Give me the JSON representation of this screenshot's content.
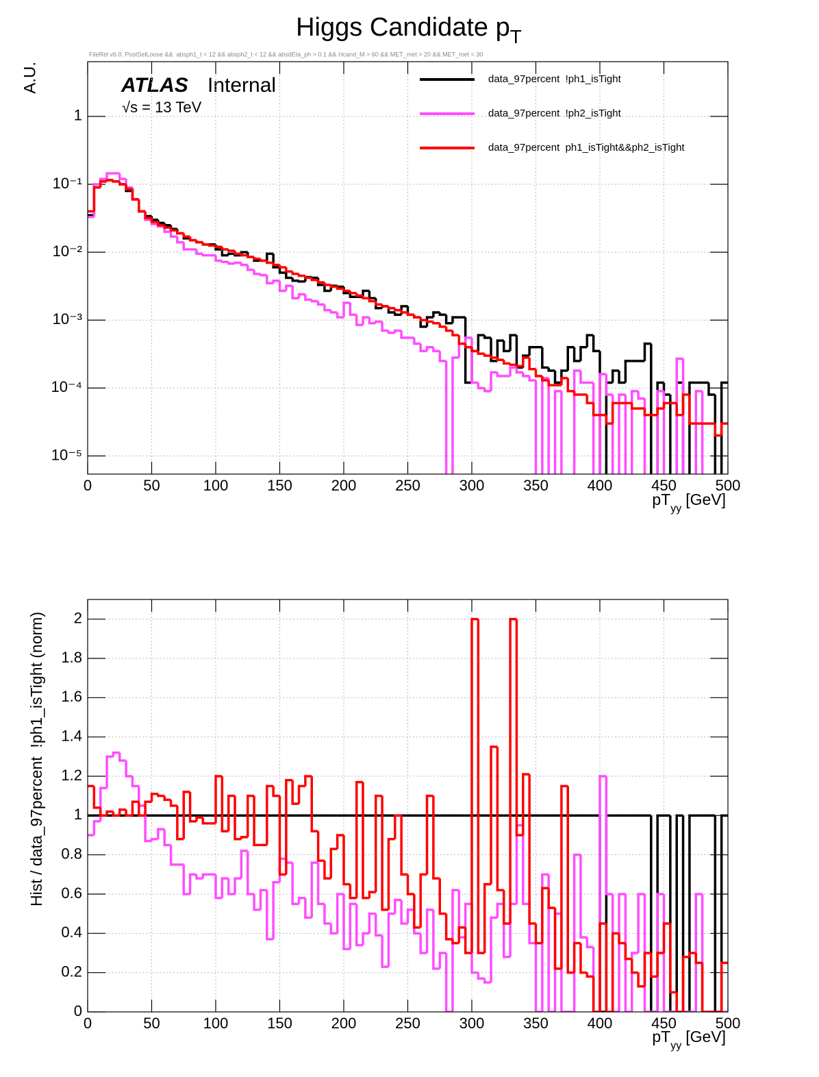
{
  "chart_data": [
    {
      "type": "histogram",
      "title": {
        "text": "Higgs Candidate p",
        "sub": "T"
      },
      "subtitle": "FileRel v6.0. PostSelLoose &&  absph1_t < 12 && absph2_t < 12 && absdEta_ph > 0.1 && Hcand_M > 60 && MET_met > 20 && MET_met < 30",
      "annotations": [
        "ATLAS",
        "Internal",
        "√s = 13 TeV"
      ],
      "ylabel": "A.U.",
      "xlabel": {
        "text": "pT",
        "sub": "yy",
        "unit": "[GeV]"
      },
      "log_y": true,
      "grid": true,
      "legend": "top-right",
      "xlim": [
        0,
        500
      ],
      "xticks": [
        0,
        50,
        100,
        150,
        200,
        250,
        300,
        350,
        400,
        450,
        500
      ],
      "ylim": [
        5.4e-06,
        6.4
      ],
      "yticks": [
        {
          "value": 1e-05,
          "label": "10⁻⁵"
        },
        {
          "value": 0.0001,
          "label": "10⁻⁴"
        },
        {
          "value": 0.001,
          "label": "10⁻³"
        },
        {
          "value": 0.01,
          "label": "10⁻²"
        },
        {
          "value": 0.1,
          "label": "10⁻¹"
        },
        1
      ],
      "bins": [
        0,
        5,
        10,
        15,
        20,
        25,
        30,
        35,
        40,
        45,
        50,
        55,
        60,
        65,
        70,
        75,
        80,
        85,
        90,
        95,
        100,
        105,
        110,
        115,
        120,
        125,
        130,
        135,
        140,
        145,
        150,
        155,
        160,
        165,
        170,
        175,
        180,
        185,
        190,
        195,
        200,
        205,
        210,
        215,
        220,
        225,
        230,
        235,
        240,
        245,
        250,
        255,
        260,
        265,
        270,
        275,
        280,
        285,
        290,
        295,
        300,
        305,
        310,
        315,
        320,
        325,
        330,
        335,
        340,
        345,
        350,
        355,
        360,
        365,
        370,
        375,
        380,
        385,
        390,
        395,
        400,
        405,
        410,
        415,
        420,
        425,
        430,
        435,
        440,
        445,
        450,
        455,
        460,
        465,
        470,
        475,
        480,
        485,
        490,
        495,
        500
      ],
      "series": [
        {
          "name": "data_97percent  !ph1_isTight",
          "color": "#000000",
          "values": [
            0.035,
            0.09,
            0.11,
            0.115,
            0.11,
            0.1,
            0.08,
            0.06,
            0.04,
            0.034,
            0.03,
            0.027,
            0.025,
            0.022,
            0.019,
            0.016,
            0.015,
            0.014,
            0.013,
            0.013,
            0.011,
            0.009,
            0.0095,
            0.009,
            0.01,
            0.0085,
            0.0075,
            0.0075,
            0.0095,
            0.006,
            0.005,
            0.0042,
            0.0038,
            0.0037,
            0.0043,
            0.0042,
            0.0033,
            0.0027,
            0.0032,
            0.0031,
            0.0025,
            0.0022,
            0.0022,
            0.0027,
            0.0021,
            0.0015,
            0.0016,
            0.0013,
            0.0012,
            0.0016,
            0.0012,
            0.0011,
            0.0008,
            0.0011,
            0.0013,
            0.0012,
            0.0009,
            0.0011,
            0.0011,
            0.00012,
            0.00035,
            0.0006,
            0.00055,
            0.00025,
            0.0005,
            0.00035,
            0.0006,
            0.0002,
            0.0003,
            0.0004,
            0.0004,
            0.0002,
            0.00018,
            0.00012,
            0.00018,
            0.0004,
            0.00025,
            0.0004,
            0.0006,
            0.00035,
            0,
            0.00012,
            0.00018,
            0.00012,
            0.00025,
            0.00025,
            0.00025,
            0.00045,
            0,
            0.00012,
            8e-05,
            0,
            0.00012,
            0,
            0.00012,
            0.00012,
            0.00012,
            8e-05,
            0,
            0.00012
          ]
        },
        {
          "name": "data_97percent  !ph2_isTight",
          "color": "#ff4dff",
          "values": [
            0.033,
            0.1,
            0.12,
            0.145,
            0.145,
            0.12,
            0.09,
            0.06,
            0.04,
            0.03,
            0.026,
            0.024,
            0.02,
            0.017,
            0.014,
            0.011,
            0.011,
            0.0095,
            0.009,
            0.009,
            0.0075,
            0.0072,
            0.0068,
            0.007,
            0.0065,
            0.0055,
            0.0048,
            0.0046,
            0.0035,
            0.0038,
            0.0027,
            0.0032,
            0.0021,
            0.0024,
            0.002,
            0.0019,
            0.0017,
            0.0014,
            0.0013,
            0.0011,
            0.0018,
            0.0012,
            0.00085,
            0.0011,
            0.0009,
            0.00095,
            0.0007,
            0.00065,
            0.0007,
            0.00055,
            0.00055,
            0.00045,
            0.00035,
            0.0004,
            0.00035,
            0.00025,
            0,
            0.00028,
            0.00045,
            0.00055,
            0.00012,
            0.0001,
            9e-05,
            0.00017,
            0.00015,
            0.00015,
            0.0002,
            0.00017,
            0.00015,
            0.00013,
            0,
            0.00014,
            0,
            9e-05,
            0,
            0,
            0.00018,
            0.00012,
            0.00012,
            0,
            0.00016,
            8e-05,
            0,
            8e-05,
            0,
            9e-05,
            7e-05,
            0,
            0,
            9e-05,
            0,
            0,
            0.00027,
            0,
            0,
            9e-05,
            0,
            0,
            0,
            0
          ]
        },
        {
          "name": "data_97percent  ph1_isTight&&ph2_isTight",
          "color": "#ff0000",
          "values": [
            0.04,
            0.09,
            0.11,
            0.115,
            0.11,
            0.1,
            0.085,
            0.06,
            0.04,
            0.032,
            0.028,
            0.025,
            0.023,
            0.021,
            0.019,
            0.017,
            0.015,
            0.014,
            0.013,
            0.0125,
            0.012,
            0.011,
            0.0105,
            0.0095,
            0.009,
            0.0085,
            0.008,
            0.0075,
            0.007,
            0.0065,
            0.006,
            0.0052,
            0.0048,
            0.0045,
            0.0042,
            0.0039,
            0.0036,
            0.0033,
            0.0031,
            0.0029,
            0.0027,
            0.0025,
            0.0023,
            0.0021,
            0.0019,
            0.0017,
            0.0016,
            0.0015,
            0.0014,
            0.0013,
            0.0012,
            0.0011,
            0.001,
            0.00095,
            0.0009,
            0.0008,
            0.0007,
            0.0006,
            0.00045,
            0.0004,
            0.00035,
            0.00032,
            0.0003,
            0.00028,
            0.00026,
            0.00023,
            0.00022,
            0.00021,
            0.00028,
            0.00019,
            0.00015,
            0.00013,
            0.00011,
            0.00011,
            0.00014,
            9e-05,
            8e-05,
            8e-05,
            6e-05,
            4e-05,
            4e-05,
            3e-05,
            6e-05,
            6e-05,
            6e-05,
            5e-05,
            5e-05,
            4e-05,
            4e-05,
            5e-05,
            6e-05,
            6e-05,
            4e-05,
            8e-05,
            3e-05,
            3e-05,
            3e-05,
            3e-05,
            2e-05,
            3e-05
          ]
        }
      ]
    },
    {
      "type": "histogram",
      "ylabel": "Hist / data_97percent  !ph1_isTight (norm)",
      "xlabel": {
        "text": "pT",
        "sub": "yy",
        "unit": "[GeV]"
      },
      "log_y": false,
      "grid": true,
      "xlim": [
        0,
        500
      ],
      "xticks": [
        0,
        50,
        100,
        150,
        200,
        250,
        300,
        350,
        400,
        450,
        500
      ],
      "ylim": [
        0,
        2.1
      ],
      "yticks": [
        0,
        0.2,
        0.4,
        0.6,
        0.8,
        1,
        1.2,
        1.4,
        1.6,
        1.8,
        2
      ],
      "bins": [
        0,
        5,
        10,
        15,
        20,
        25,
        30,
        35,
        40,
        45,
        50,
        55,
        60,
        65,
        70,
        75,
        80,
        85,
        90,
        95,
        100,
        105,
        110,
        115,
        120,
        125,
        130,
        135,
        140,
        145,
        150,
        155,
        160,
        165,
        170,
        175,
        180,
        185,
        190,
        195,
        200,
        205,
        210,
        215,
        220,
        225,
        230,
        235,
        240,
        245,
        250,
        255,
        260,
        265,
        270,
        275,
        280,
        285,
        290,
        295,
        300,
        305,
        310,
        315,
        320,
        325,
        330,
        335,
        340,
        345,
        350,
        355,
        360,
        365,
        370,
        375,
        380,
        385,
        390,
        395,
        400,
        405,
        410,
        415,
        420,
        425,
        430,
        435,
        440,
        445,
        450,
        455,
        460,
        465,
        470,
        475,
        480,
        485,
        490,
        495,
        500
      ],
      "series": [
        {
          "color": "#000000",
          "values": [
            1,
            1,
            1,
            1,
            1,
            1,
            1,
            1,
            1,
            1,
            1,
            1,
            1,
            1,
            1,
            1,
            1,
            1,
            1,
            1,
            1,
            1,
            1,
            1,
            1,
            1,
            1,
            1,
            1,
            1,
            1,
            1,
            1,
            1,
            1,
            1,
            1,
            1,
            1,
            1,
            1,
            1,
            1,
            1,
            1,
            1,
            1,
            1,
            1,
            1,
            1,
            1,
            1,
            1,
            1,
            1,
            1,
            1,
            1,
            1,
            1,
            1,
            1,
            1,
            1,
            1,
            1,
            1,
            1,
            1,
            1,
            1,
            1,
            1,
            1,
            1,
            1,
            1,
            1,
            1,
            0,
            1,
            1,
            1,
            1,
            1,
            1,
            1,
            0,
            1,
            1,
            0,
            1,
            0,
            1,
            1,
            1,
            1,
            0,
            1
          ]
        },
        {
          "color": "#ff4dff",
          "values": [
            0.9,
            0.97,
            1.14,
            1.3,
            1.32,
            1.28,
            1.2,
            1.15,
            1.05,
            0.87,
            0.88,
            0.93,
            0.85,
            0.75,
            0.75,
            0.6,
            0.7,
            0.68,
            0.7,
            0.7,
            0.58,
            0.68,
            0.6,
            0.68,
            0.82,
            0.6,
            0.52,
            0.62,
            0.37,
            0.66,
            0.78,
            0.76,
            0.55,
            0.58,
            0.48,
            0.76,
            0.55,
            0.45,
            0.4,
            0.6,
            0.32,
            0.55,
            0.34,
            0.4,
            0.5,
            0.39,
            0.23,
            0.5,
            0.57,
            0.45,
            0.52,
            0.4,
            0.3,
            0.52,
            0.22,
            0.3,
            0,
            0.62,
            0.38,
            0.55,
            0.2,
            0.17,
            0.15,
            0.48,
            0.55,
            0.28,
            0.55,
            0.95,
            0.55,
            0.35,
            0,
            0.7,
            0,
            0.5,
            0,
            0,
            0.8,
            0.38,
            0.33,
            0,
            1.2,
            0.6,
            0,
            0.6,
            0,
            0.3,
            0.6,
            0,
            0,
            0.6,
            0,
            0,
            0,
            0,
            0,
            0.6,
            0,
            0,
            0,
            0
          ]
        },
        {
          "color": "#ff0000",
          "values": [
            1.15,
            1.04,
            1.0,
            1.02,
            1.0,
            1.03,
            1.0,
            1.07,
            1.0,
            1.07,
            1.11,
            1.1,
            1.08,
            1.05,
            0.88,
            1.12,
            0.97,
            0.99,
            0.96,
            0.96,
            1.2,
            0.92,
            1.1,
            0.88,
            0.89,
            1.1,
            0.85,
            0.85,
            1.15,
            1.1,
            0.7,
            1.18,
            1.06,
            1.15,
            1.2,
            0.92,
            0.77,
            0.68,
            0.83,
            0.9,
            0.65,
            0.58,
            1.17,
            0.58,
            0.61,
            1.1,
            0.52,
            0.88,
            1.0,
            0.7,
            0.6,
            0.43,
            0.7,
            1.1,
            0.68,
            0.5,
            0.37,
            0.35,
            0.43,
            0.3,
            2.0,
            0.3,
            0.65,
            1.35,
            0.62,
            0.45,
            2.0,
            0.9,
            1.21,
            0.45,
            0.35,
            0.63,
            0.53,
            0.22,
            1.15,
            0.2,
            0.35,
            0.2,
            0.18,
            0,
            0.45,
            0,
            0.4,
            0.35,
            0.27,
            0.2,
            0.13,
            0.3,
            0.18,
            0.3,
            0.45,
            0.1,
            0,
            0.28,
            0.3,
            0.25,
            0,
            0,
            0,
            0.25
          ]
        }
      ]
    }
  ]
}
